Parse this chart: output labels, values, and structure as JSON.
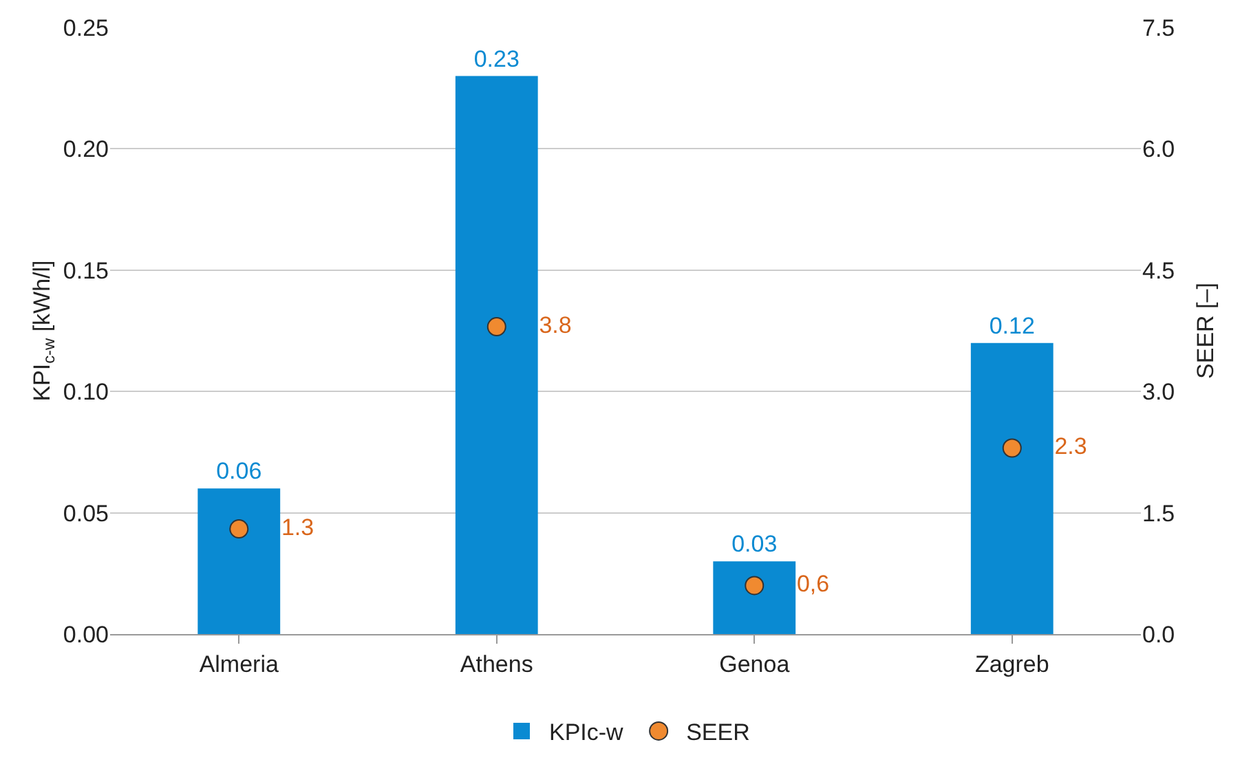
{
  "chart_data": {
    "type": "bar",
    "categories": [
      "Almeria",
      "Athens",
      "Genoa",
      "Zagreb"
    ],
    "ylabel": "KPI$_{c-w}$ [kWh/l]",
    "y2label": "SEER [–]",
    "series": [
      {
        "name": "KPIc-w",
        "type": "bar",
        "color": "#0a8ad2",
        "values": [
          0.06,
          0.23,
          0.03,
          0.12
        ],
        "value_labels": [
          "0.06",
          "0.23",
          "0.03",
          "0.12"
        ]
      },
      {
        "name": "SEER",
        "type": "scatter",
        "axis": "y2",
        "color": "#f08a30",
        "values": [
          1.3,
          3.8,
          0.6,
          2.3
        ],
        "value_labels": [
          "1.3",
          "3.8",
          "0,6",
          "2.3"
        ]
      }
    ],
    "ylim": [
      0,
      0.25
    ],
    "yticks": [
      {
        "value": 0,
        "label": "0.00"
      },
      {
        "value": 0.05,
        "label": "0.05"
      },
      {
        "value": 0.1,
        "label": "0.10"
      },
      {
        "value": 0.15,
        "label": "0.15"
      },
      {
        "value": 0.2,
        "label": "0.20"
      },
      {
        "value": 0.25,
        "label": "0.25"
      }
    ],
    "y2lim": [
      0,
      7.5
    ],
    "y2ticks": [
      {
        "value": 0,
        "label": "0.0"
      },
      {
        "value": 1.5,
        "label": "1.5"
      },
      {
        "value": 3,
        "label": "3.0"
      },
      {
        "value": 4.5,
        "label": "4.5"
      },
      {
        "value": 6,
        "label": "6.0"
      },
      {
        "value": 7.5,
        "label": "7.5"
      }
    ],
    "grid": "y",
    "legend": "bottom",
    "marker": "circle"
  }
}
